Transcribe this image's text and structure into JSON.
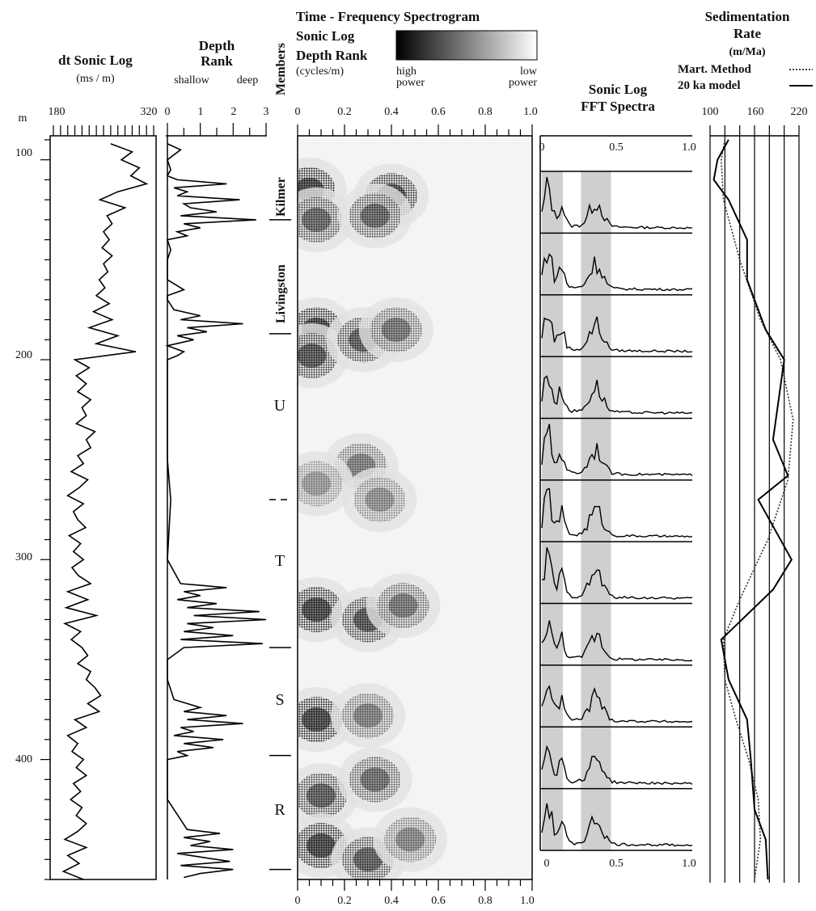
{
  "chart_data": [
    {
      "type": "line",
      "title": "dt Sonic Log",
      "unit": "(ms / m)",
      "depth_label": "m",
      "xlim": [
        180,
        320
      ],
      "x_ticks_labeled": [
        180,
        320
      ],
      "ylim": [
        88,
        460
      ],
      "depth_ticks": [
        100,
        200,
        300,
        400
      ],
      "series": [
        {
          "depth": [
            92,
            96,
            100,
            104,
            108,
            112,
            116,
            120,
            124,
            128,
            132,
            136,
            140,
            144,
            148,
            152,
            156,
            160,
            164,
            168,
            172,
            176,
            180,
            184,
            188,
            192,
            196,
            200,
            204,
            208,
            212,
            216,
            220,
            224,
            228,
            232,
            236,
            240,
            244,
            248,
            252,
            256,
            260,
            264,
            268,
            272,
            276,
            280,
            284,
            288,
            292,
            296,
            300,
            304,
            308,
            312,
            316,
            320,
            324,
            328,
            332,
            336,
            340,
            344,
            348,
            352,
            356,
            360,
            364,
            368,
            372,
            376,
            380,
            384,
            388,
            392,
            396,
            400,
            404,
            408,
            412,
            416,
            420,
            424,
            428,
            432,
            436,
            440,
            444,
            448,
            452,
            456,
            460
          ],
          "values": [
            260,
            290,
            275,
            300,
            288,
            310,
            270,
            245,
            280,
            255,
            262,
            250,
            258,
            248,
            262,
            250,
            256,
            244,
            252,
            240,
            258,
            236,
            262,
            230,
            270,
            240,
            295,
            210,
            230,
            212,
            226,
            214,
            232,
            220,
            226,
            212,
            238,
            226,
            232,
            214,
            222,
            205,
            228,
            216,
            200,
            222,
            208,
            214,
            225,
            202,
            218,
            208,
            222,
            206,
            215,
            232,
            200,
            228,
            198,
            240,
            196,
            218,
            205,
            220,
            228,
            214,
            232,
            226,
            238,
            246,
            228,
            244,
            210,
            226,
            200,
            214,
            206,
            222,
            212,
            226,
            208,
            218,
            204,
            220,
            212,
            226,
            214,
            196,
            226,
            200,
            216,
            194,
            222
          ]
        }
      ]
    },
    {
      "type": "line",
      "title": "Depth",
      "title2": "Rank",
      "left_label": "shallow",
      "right_label": "deep",
      "xlim": [
        0,
        3
      ],
      "x_ticks": [
        0,
        1,
        2,
        3
      ],
      "tick_labels": [
        "0",
        "1",
        "2",
        "3"
      ],
      "series": [
        {
          "depth": [
            92,
            95,
            100,
            105,
            108,
            110,
            112,
            114,
            116,
            118,
            120,
            122,
            124,
            126,
            128,
            130,
            132,
            134,
            136,
            138,
            140,
            145,
            150,
            160,
            165,
            168,
            170,
            175,
            178,
            180,
            182,
            184,
            186,
            188,
            190,
            193,
            196,
            198,
            200,
            210,
            250,
            270,
            300,
            312,
            314,
            316,
            318,
            320,
            322,
            324,
            326,
            328,
            330,
            332,
            334,
            336,
            338,
            340,
            342,
            344,
            350,
            360,
            370,
            374,
            376,
            378,
            380,
            382,
            384,
            386,
            388,
            390,
            392,
            394,
            396,
            398,
            400,
            410,
            420,
            435,
            437,
            439,
            441,
            443,
            445,
            447,
            449,
            451,
            453,
            455,
            457,
            459
          ],
          "values": [
            0,
            0.4,
            0,
            0.1,
            0,
            0.3,
            1.8,
            0.2,
            0.6,
            0.3,
            2.2,
            0.5,
            0.7,
            1.5,
            0.4,
            2.7,
            0.5,
            1.0,
            0.3,
            0.6,
            0,
            0.1,
            0,
            0,
            0.5,
            0,
            0,
            0.2,
            1.0,
            0.4,
            2.3,
            0.6,
            1.2,
            0.3,
            0.8,
            0,
            0.5,
            0.3,
            0,
            0,
            0,
            0.1,
            0,
            0.4,
            1.8,
            0.5,
            1.0,
            0.3,
            1.5,
            0.6,
            2.8,
            0.8,
            3.0,
            0.6,
            1.4,
            0.5,
            2.0,
            0.4,
            2.9,
            0.5,
            0,
            0,
            0.2,
            1.0,
            0.5,
            1.8,
            0.6,
            2.3,
            0.4,
            0.8,
            0.2,
            1.7,
            0.5,
            1.4,
            0.3,
            0.6,
            0,
            0,
            0,
            0.6,
            1.6,
            0.5,
            1.3,
            0.7,
            2.0,
            0.3,
            1.1,
            1.9,
            0.4,
            2.0,
            1.0,
            0.5
          ]
        }
      ]
    },
    {
      "type": "heatmap",
      "title": "Time - Frequency Spectrogram",
      "line2": "Sonic Log",
      "line3": "Depth Rank",
      "unit": "(cycles/m)",
      "legend": {
        "left": "high",
        "left2": "power",
        "right": "low",
        "right2": "power"
      },
      "members_label": "Members",
      "members": [
        {
          "name": "Kilmer",
          "top": 90,
          "bottom": 130
        },
        {
          "name": "Livingston",
          "top": 130,
          "bottom": 187
        },
        {
          "name": "U",
          "top": 187,
          "bottom": 270
        },
        {
          "name": "T",
          "top": 270,
          "bottom": 344
        },
        {
          "name": "S",
          "top": 344,
          "bottom": 398
        },
        {
          "name": "R",
          "top": 398,
          "bottom": 455
        }
      ],
      "xlim": [
        0,
        1.0
      ],
      "x_ticks": [
        0,
        0.2,
        0.4,
        0.6,
        0.8,
        1.0
      ],
      "tick_labels": [
        "0",
        "0.2",
        "0.4",
        "0.6",
        "0.8",
        "1.0"
      ],
      "ylim": [
        88,
        460
      ],
      "high_power_blobs": [
        {
          "freq": 0.05,
          "depth": 115,
          "strength": 0.9
        },
        {
          "freq": 0.08,
          "depth": 130,
          "strength": 0.7
        },
        {
          "freq": 0.4,
          "depth": 118,
          "strength": 0.85
        },
        {
          "freq": 0.33,
          "depth": 128,
          "strength": 0.7
        },
        {
          "freq": 0.08,
          "depth": 185,
          "strength": 0.9
        },
        {
          "freq": 0.06,
          "depth": 198,
          "strength": 0.8
        },
        {
          "freq": 0.28,
          "depth": 190,
          "strength": 0.75
        },
        {
          "freq": 0.42,
          "depth": 185,
          "strength": 0.6
        },
        {
          "freq": 0.27,
          "depth": 253,
          "strength": 0.55
        },
        {
          "freq": 0.35,
          "depth": 270,
          "strength": 0.45
        },
        {
          "freq": 0.08,
          "depth": 262,
          "strength": 0.4
        },
        {
          "freq": 0.08,
          "depth": 325,
          "strength": 0.9
        },
        {
          "freq": 0.3,
          "depth": 330,
          "strength": 0.8
        },
        {
          "freq": 0.45,
          "depth": 323,
          "strength": 0.6
        },
        {
          "freq": 0.08,
          "depth": 380,
          "strength": 0.9
        },
        {
          "freq": 0.3,
          "depth": 378,
          "strength": 0.55
        },
        {
          "freq": 0.1,
          "depth": 418,
          "strength": 0.75
        },
        {
          "freq": 0.33,
          "depth": 410,
          "strength": 0.65
        },
        {
          "freq": 0.1,
          "depth": 443,
          "strength": 0.9
        },
        {
          "freq": 0.3,
          "depth": 450,
          "strength": 0.75
        },
        {
          "freq": 0.48,
          "depth": 440,
          "strength": 0.5
        }
      ]
    },
    {
      "type": "line",
      "title": "Sonic Log",
      "title2": "FFT Spectra",
      "xlim": [
        0,
        1.0
      ],
      "x_ticks": [
        0,
        0.5,
        1.0
      ],
      "tick_labels": [
        "0",
        "0.5",
        "1.0"
      ],
      "bands": [
        [
          0,
          0.14
        ],
        [
          0.26,
          0.46
        ]
      ],
      "panels": 11
    },
    {
      "type": "line",
      "title": "Sedimentation",
      "title2": "Rate",
      "unit": "(m/Ma)",
      "xlim": [
        100,
        220
      ],
      "x_ticks": [
        100,
        160,
        220
      ],
      "legend": [
        {
          "name": "Mart. Method",
          "style": "dotted"
        },
        {
          "name": "20 ka model",
          "style": "solid"
        }
      ],
      "series": [
        {
          "name": "Mart. Method",
          "depth": [
            90,
            100,
            120,
            150,
            180,
            200,
            230,
            260,
            290,
            320,
            340,
            360,
            380,
            400,
            420,
            440,
            460
          ],
          "values": [
            120,
            115,
            118,
            140,
            168,
            195,
            212,
            205,
            178,
            140,
            118,
            120,
            135,
            152,
            165,
            168,
            160
          ]
        },
        {
          "name": "20 ka model",
          "depth": [
            90,
            100,
            110,
            120,
            140,
            160,
            185,
            200,
            240,
            258,
            270,
            300,
            315,
            340,
            360,
            380,
            400,
            425,
            440,
            460
          ],
          "values": [
            125,
            110,
            105,
            125,
            150,
            150,
            175,
            200,
            185,
            205,
            165,
            210,
            185,
            115,
            125,
            150,
            155,
            160,
            175,
            178
          ]
        }
      ]
    }
  ]
}
